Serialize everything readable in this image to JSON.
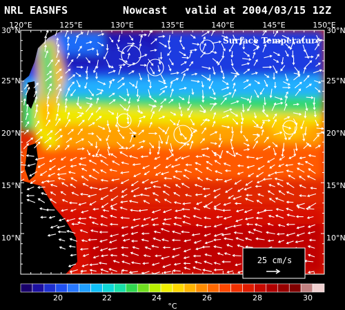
{
  "header": {
    "source": "NRL EASNFS",
    "product": "Nowcast",
    "valid": "valid at 2004/03/15 12Z"
  },
  "map": {
    "field_title": "Surface Temperature",
    "lon_labels": [
      "120°E",
      "125°E",
      "130°E",
      "135°E",
      "140°E",
      "145°E",
      "150°E"
    ],
    "lat_labels": [
      "30°N",
      "25°N",
      "20°N",
      "15°N",
      "10°N"
    ],
    "reference_vector_label": "25 cm/s"
  },
  "colorbar": {
    "ticks": [
      "20",
      "22",
      "24",
      "26",
      "28",
      "30"
    ],
    "unit": "°C",
    "colors": [
      "#18006a",
      "#1c10a0",
      "#1e30d0",
      "#2050f0",
      "#2878ff",
      "#20a0ff",
      "#10c0f8",
      "#10d8d8",
      "#18e0a8",
      "#30d850",
      "#70e020",
      "#b8f000",
      "#f0f000",
      "#ffd800",
      "#ffb400",
      "#ff8c00",
      "#ff6800",
      "#ff4800",
      "#f03000",
      "#e01c00",
      "#c80a00",
      "#b00000",
      "#980000",
      "#800000",
      "#c08080",
      "#f0d0d0"
    ]
  },
  "colors": {
    "background": "#000000",
    "land": "#000000",
    "currents": "#ffffff"
  }
}
